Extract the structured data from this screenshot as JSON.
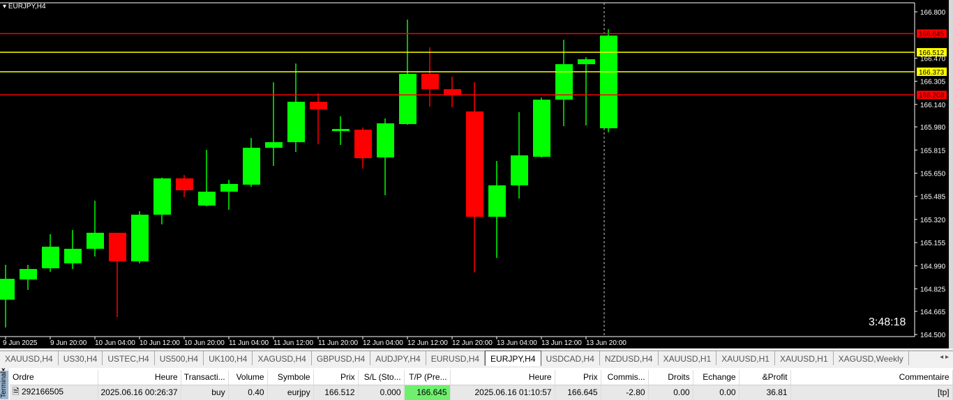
{
  "chart": {
    "title": "EURJPY,H4",
    "timer": "3:48:18",
    "colors": {
      "bull": "#00ff00",
      "bear": "#ff0000",
      "bg": "#000000",
      "tp_sl_line": "#ff0000",
      "entry_line": "#ffff00"
    },
    "price_axis": [
      "166.800",
      "166.470",
      "166.305",
      "166.140",
      "165.980",
      "165.815",
      "165.650",
      "165.485",
      "165.320",
      "165.155",
      "164.990",
      "164.825",
      "164.665",
      "164.500"
    ],
    "time_axis": [
      "9 Jun 2025",
      "9 Jun 20:00",
      "10 Jun 04:00",
      "10 Jun 12:00",
      "10 Jun 20:00",
      "11 Jun 04:00",
      "11 Jun 12:00",
      "11 Jun 20:00",
      "12 Jun 04:00",
      "12 Jun 12:00",
      "12 Jun 20:00",
      "13 Jun 04:00",
      "13 Jun 12:00",
      "13 Jun 20:00"
    ],
    "levels": [
      {
        "price": "166.645",
        "color": "#ff0000"
      },
      {
        "price": "166.512",
        "color": "#ffff00"
      },
      {
        "price": "166.373",
        "color": "#ffff00"
      },
      {
        "price": "166.208",
        "color": "#ff0000"
      }
    ],
    "ohlc": [
      [
        164.748,
        164.997,
        164.55,
        164.897
      ],
      [
        164.892,
        164.997,
        164.818,
        164.967
      ],
      [
        164.972,
        165.215,
        164.947,
        165.126
      ],
      [
        165.007,
        165.245,
        164.967,
        165.111
      ],
      [
        165.111,
        165.454,
        165.056,
        165.225
      ],
      [
        165.225,
        165.225,
        164.624,
        165.021
      ],
      [
        165.021,
        165.379,
        165.007,
        165.354
      ],
      [
        165.354,
        165.618,
        165.285,
        165.613
      ],
      [
        165.613,
        165.637,
        165.479,
        165.528
      ],
      [
        165.419,
        165.816,
        165.414,
        165.518
      ],
      [
        165.518,
        165.603,
        165.389,
        165.573
      ],
      [
        165.568,
        165.901,
        165.553,
        165.831
      ],
      [
        165.831,
        166.298,
        165.702,
        165.871
      ],
      [
        165.871,
        166.432,
        165.801,
        166.159
      ],
      [
        166.159,
        166.219,
        165.856,
        166.104
      ],
      [
        165.95,
        166.055,
        165.851,
        165.965
      ],
      [
        165.96,
        165.975,
        165.682,
        165.757
      ],
      [
        165.762,
        166.04,
        165.493,
        166.005
      ],
      [
        166.0,
        166.745,
        165.995,
        166.358
      ],
      [
        166.358,
        166.547,
        166.124,
        166.249
      ],
      [
        166.249,
        166.338,
        166.119,
        166.209
      ],
      [
        166.09,
        166.298,
        164.942,
        165.339
      ],
      [
        165.339,
        165.737,
        165.046,
        165.563
      ],
      [
        165.563,
        166.085,
        165.469,
        165.777
      ],
      [
        165.767,
        166.189,
        165.762,
        166.174
      ],
      [
        166.174,
        166.601,
        165.985,
        166.427
      ],
      [
        166.427,
        166.477,
        165.99,
        166.462
      ],
      [
        165.97,
        166.676,
        165.941,
        166.631
      ]
    ]
  },
  "tabs": [
    "XAUUSD,H4",
    "US30,H4",
    "USTEC,H4",
    "US500,H4",
    "UK100,H4",
    "XAGUSD,H4",
    "GBPUSD,H4",
    "AUDJPY,H4",
    "EURUSD,H4",
    "EURJPY,H4",
    "USDCAD,H4",
    "NZDUSD,H4",
    "XAUUSD,H1",
    "XAUUSD,H1",
    "XAUUSD,H1",
    "XAGUSD,Weekly"
  ],
  "active_tab": "EURJPY,H4",
  "terminal": {
    "close": "x",
    "side_label": "Terminal",
    "headers": [
      "Ordre",
      "Heure",
      "Transacti...",
      "Volume",
      "Symbole",
      "Prix",
      "S/L (Sto...",
      "T/P (Pre...",
      "Heure",
      "Prix",
      "Commis...",
      "Droits",
      "Echange",
      "&Profit",
      "Commentaire"
    ],
    "row": [
      "292166505",
      "2025.06.16 00:26:37",
      "buy",
      "0.40",
      "eurjpy",
      "166.512",
      "0.000",
      "166.645",
      "2025.06.16 01:10:57",
      "166.645",
      "-2.80",
      "0.00",
      "0.00",
      "36.81",
      "[tp]"
    ]
  }
}
